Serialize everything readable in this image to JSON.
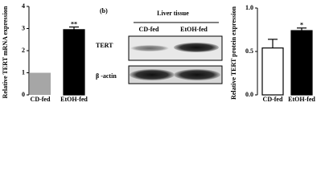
{
  "chart_data": [
    {
      "type": "bar",
      "ylabel": "Relative TERT mRNA expression",
      "categories": [
        "CD-fed",
        "EtOH-fed"
      ],
      "values": [
        1,
        2.95
      ],
      "errors": [
        null,
        0.12
      ],
      "value_annotations": [
        null,
        "**"
      ],
      "colors": [
        "#a6a6a6",
        "#000000"
      ],
      "ylim": [
        0,
        4
      ],
      "yticks": [
        0,
        1,
        2,
        3,
        4
      ]
    },
    {
      "type": "bar",
      "ylabel": "Relative TERT protein expression",
      "categories": [
        "CD-fed",
        "EtOH-fed"
      ],
      "values": [
        0.54,
        0.74
      ],
      "errors": [
        0.1,
        0.03
      ],
      "value_annotations": [
        null,
        "*"
      ],
      "colors": [
        "#ffffff",
        "#000000"
      ],
      "ylim": [
        0,
        1
      ],
      "yticks": [
        {
          "value": 0,
          "label": "0.0"
        },
        {
          "value": 0.5,
          "label": "0.5"
        },
        {
          "value": 1,
          "label": "1.0"
        }
      ]
    }
  ],
  "blot": {
    "panel": "(b)",
    "title": "Liver tissue",
    "lanes": [
      "CD-fed",
      "EtOH-fed"
    ],
    "bands": [
      "TERT",
      "β -actin"
    ]
  }
}
